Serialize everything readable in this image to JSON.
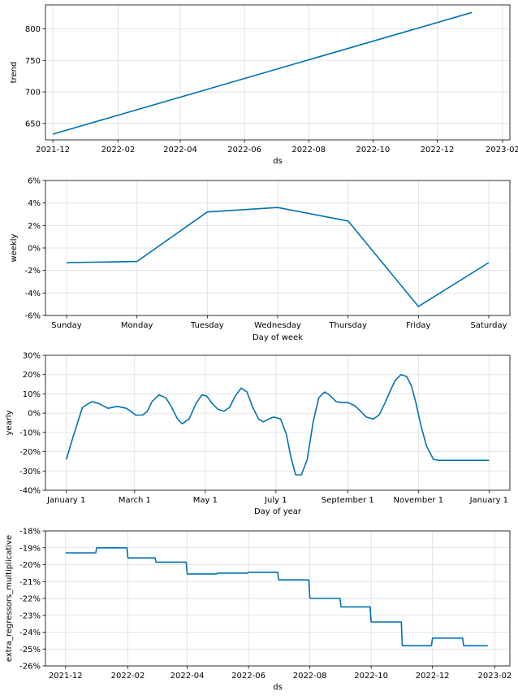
{
  "colors": {
    "line": "#0072b2",
    "grid": "#dddddd"
  },
  "chart_data": [
    {
      "type": "line",
      "ylabel": "trend",
      "xlabel": "ds",
      "x_tick_labels": [
        "2021-12",
        "2022-02",
        "2022-04",
        "2022-06",
        "2022-08",
        "2022-10",
        "2022-12",
        "2023-02"
      ],
      "y_tick_labels": [
        "650",
        "700",
        "750",
        "800"
      ],
      "x_tick_values": [
        0,
        62,
        121,
        182,
        243,
        304,
        365,
        427
      ],
      "y_tick_values": [
        650,
        700,
        750,
        800
      ],
      "xlim": [
        -7,
        434
      ],
      "ylim": [
        624,
        838
      ],
      "grid": true,
      "series": [
        {
          "x": [
            0,
            398
          ],
          "y": [
            633,
            826
          ]
        }
      ]
    },
    {
      "type": "line",
      "ylabel": "weekly",
      "xlabel": "Day of week",
      "x_tick_labels": [
        "Sunday",
        "Monday",
        "Tuesday",
        "Wednesday",
        "Thursday",
        "Friday",
        "Saturday"
      ],
      "y_tick_labels": [
        "-6%",
        "-4%",
        "-2%",
        "0%",
        "2%",
        "4%",
        "6%"
      ],
      "x_tick_values": [
        0,
        1,
        2,
        3,
        4,
        5,
        6
      ],
      "y_tick_values": [
        -6,
        -4,
        -2,
        0,
        2,
        4,
        6
      ],
      "xlim": [
        -0.3,
        6.3
      ],
      "ylim": [
        -6,
        6
      ],
      "grid": true,
      "series": [
        {
          "x": [
            0,
            1,
            2,
            3,
            4,
            5,
            6
          ],
          "y": [
            -1.3,
            -1.2,
            3.2,
            3.6,
            2.4,
            -5.2,
            -1.3
          ]
        }
      ]
    },
    {
      "type": "line",
      "ylabel": "yearly",
      "xlabel": "Day of year",
      "x_tick_labels": [
        "January 1",
        "March 1",
        "May 1",
        "July 1",
        "September 1",
        "November 1",
        "January 1"
      ],
      "y_tick_labels": [
        "-40%",
        "-30%",
        "-20%",
        "-10%",
        "0%",
        "10%",
        "20%",
        "30%"
      ],
      "x_tick_values": [
        0,
        59,
        120,
        181,
        243,
        304,
        365
      ],
      "y_tick_values": [
        -40,
        -30,
        -20,
        -10,
        0,
        10,
        20,
        30
      ],
      "xlim": [
        -18,
        383
      ],
      "ylim": [
        -40,
        30
      ],
      "grid": true,
      "series": [
        {
          "x": [
            0,
            6,
            14,
            22,
            28,
            36,
            44,
            52,
            60,
            66,
            70,
            74,
            80,
            86,
            91,
            96,
            100,
            106,
            112,
            117,
            121,
            126,
            131,
            136,
            141,
            146,
            151,
            156,
            161,
            166,
            170,
            175,
            179,
            185,
            190,
            194,
            198,
            203,
            208,
            213,
            218,
            223,
            227,
            233,
            238,
            243,
            249,
            255,
            259,
            265,
            270,
            275,
            280,
            284,
            289,
            294,
            298,
            302,
            306,
            311,
            317,
            322,
            328,
            334,
            340,
            346,
            350,
            356,
            362,
            365
          ],
          "y": [
            -24,
            -12,
            3,
            6,
            5,
            2.5,
            3.5,
            2.5,
            -1,
            -1,
            1,
            6,
            9.5,
            8,
            3,
            -3,
            -5.5,
            -3,
            5,
            9.5,
            9,
            5,
            2,
            1,
            3,
            9,
            13,
            11,
            3,
            -3,
            -4.5,
            -3,
            -2,
            -3,
            -11,
            -23,
            -32,
            -32,
            -24,
            -5,
            8,
            11,
            9.5,
            6,
            5.5,
            5.5,
            4,
            0.5,
            -2,
            -3,
            -1,
            5,
            12,
            17,
            20,
            19,
            14,
            5,
            -6,
            -17,
            -24,
            -24.5,
            -24.5,
            -24.5,
            -24.5,
            -24.5,
            -24.5,
            -24.5,
            -24.5,
            -24.5
          ]
        }
      ]
    },
    {
      "type": "line",
      "ylabel": "extra_regressors_multiplicative",
      "xlabel": "ds",
      "x_tick_labels": [
        "2021-12",
        "2022-02",
        "2022-04",
        "2022-06",
        "2022-08",
        "2022-10",
        "2022-12",
        "2023-02"
      ],
      "y_tick_labels": [
        "-18%",
        "-19%",
        "-20%",
        "-21%",
        "-22%",
        "-23%",
        "-24%",
        "-25%",
        "-26%"
      ],
      "x_tick_values": [
        0,
        62,
        121,
        182,
        243,
        304,
        365,
        427
      ],
      "y_tick_values": [
        -18,
        -19,
        -20,
        -21,
        -22,
        -23,
        -24,
        -25,
        -26
      ],
      "xlim": [
        -20,
        442
      ],
      "ylim": [
        -26,
        -18
      ],
      "grid": true,
      "series": [
        {
          "x": [
            0,
            30,
            31,
            61,
            62,
            89,
            90,
            120,
            121,
            150,
            151,
            181,
            182,
            211,
            212,
            242,
            243,
            273,
            274,
            303,
            304,
            334,
            335,
            364,
            365,
            395,
            396,
            420
          ],
          "y": [
            -19.3,
            -19.3,
            -19.0,
            -19.0,
            -19.6,
            -19.6,
            -19.85,
            -19.85,
            -20.55,
            -20.55,
            -20.5,
            -20.5,
            -20.45,
            -20.45,
            -20.9,
            -20.9,
            -22.0,
            -22.0,
            -22.5,
            -22.5,
            -23.4,
            -23.4,
            -24.8,
            -24.8,
            -24.35,
            -24.35,
            -24.8,
            -24.8
          ]
        }
      ]
    }
  ]
}
